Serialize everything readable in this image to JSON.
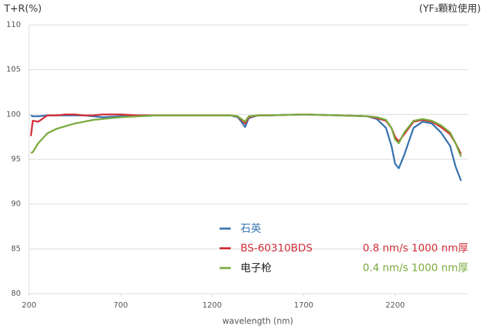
{
  "chart_data": {
    "type": "line",
    "title": "T+R(%)",
    "subtitle": "(YF₃顆粒使用)",
    "x_label": "wavelength (nm)",
    "x": [
      210,
      220,
      250,
      300,
      350,
      400,
      450,
      500,
      550,
      600,
      700,
      800,
      900,
      1000,
      1100,
      1200,
      1300,
      1340,
      1360,
      1380,
      1400,
      1450,
      1500,
      1700,
      1900,
      2050,
      2100,
      2150,
      2180,
      2200,
      2220,
      2250,
      2300,
      2350,
      2400,
      2450,
      2500,
      2530,
      2560
    ],
    "series": [
      {
        "name": "石英",
        "color": "#3a75b0",
        "values": [
          99.9,
          99.8,
          99.8,
          99.9,
          99.9,
          99.9,
          99.9,
          99.9,
          99.8,
          99.7,
          99.8,
          99.9,
          99.9,
          99.9,
          99.9,
          99.9,
          99.9,
          99.7,
          99.2,
          98.6,
          99.6,
          99.9,
          99.9,
          100,
          99.9,
          99.8,
          99.5,
          98.5,
          96.5,
          94.5,
          94.0,
          95.5,
          98.5,
          99.2,
          99.0,
          98.0,
          96.5,
          94.2,
          92.6
        ]
      },
      {
        "name": "BS-60310BDS",
        "color": "#d3303a",
        "note": "0.8 nm/s 1000 nm厚",
        "values": [
          97.6,
          99.3,
          99.2,
          99.9,
          99.9,
          100,
          100,
          99.9,
          99.9,
          100,
          100,
          99.9,
          99.9,
          99.9,
          99.9,
          99.9,
          99.9,
          99.8,
          99.4,
          99.0,
          99.7,
          99.9,
          99.9,
          100,
          99.9,
          99.8,
          99.6,
          99.3,
          98.5,
          97.5,
          97.0,
          97.8,
          99.2,
          99.4,
          99.2,
          98.6,
          97.8,
          96.8,
          95.6
        ]
      },
      {
        "name": "电子枪",
        "color": "#7aab3f",
        "note": "0.4 nm/s 1000 nm厚",
        "values": [
          95.7,
          95.8,
          96.8,
          97.9,
          98.4,
          98.7,
          99.0,
          99.2,
          99.4,
          99.5,
          99.7,
          99.8,
          99.9,
          99.9,
          99.9,
          99.9,
          99.9,
          99.8,
          99.5,
          99.2,
          99.8,
          99.9,
          99.9,
          100,
          99.9,
          99.8,
          99.7,
          99.4,
          98.5,
          97.2,
          96.8,
          98.0,
          99.3,
          99.5,
          99.3,
          98.8,
          98.0,
          96.8,
          95.3
        ]
      }
    ],
    "xlim": [
      200,
      2600
    ],
    "xticks": [
      200,
      700,
      1200,
      1700,
      2200
    ],
    "ylim": [
      80,
      110
    ],
    "yticks": [
      80,
      85,
      90,
      95,
      100,
      105,
      110
    ],
    "grid": true
  }
}
